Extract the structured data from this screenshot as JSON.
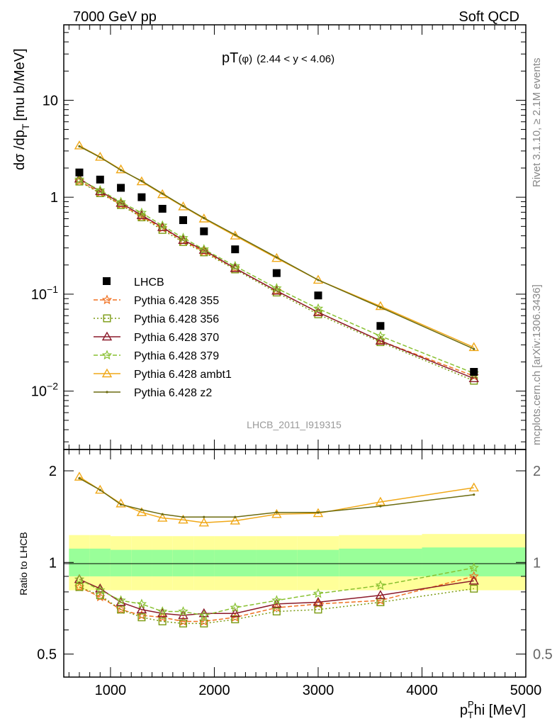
{
  "header": {
    "left": "7000 GeV pp",
    "right": "Soft QCD"
  },
  "side_labels": {
    "rivet": "Rivet 3.1.10, ≥ 2.1M events",
    "mcplots": "mcplots.cern.ch [arXiv:1306.3436]"
  },
  "analysis_label": "LHCB_2011_I919315",
  "chart_data": [
    {
      "type": "line",
      "title_main": "pT",
      "title_sub": "(φ)",
      "title_range": "(2.44 < y < 4.06)",
      "ylabel": "dσ /dp",
      "ylabel_sub": "T",
      "ylabel_unit": "[mu b/MeV]",
      "yscale": "log",
      "xlim": [
        550,
        5000
      ],
      "ylim": [
        0.0025,
        60
      ],
      "y_ticks": [
        {
          "value": 10,
          "label": "10"
        },
        {
          "value": 1,
          "label": "1"
        },
        {
          "value": 0.1,
          "base": "10",
          "exp": "−1"
        },
        {
          "value": 0.01,
          "base": "10",
          "exp": "−2"
        }
      ],
      "x": [
        700,
        900,
        1100,
        1300,
        1500,
        1700,
        1900,
        2200,
        2600,
        3000,
        3600,
        4500
      ],
      "data": {
        "name": "LHCB",
        "values": [
          1.8,
          1.52,
          1.25,
          1.0,
          0.76,
          0.58,
          0.445,
          0.29,
          0.165,
          0.097,
          0.047,
          0.0158
        ],
        "color": "#000000"
      },
      "series": [
        {
          "name": "Pythia 6.428 355",
          "color": "#f07020",
          "dash": "6,3",
          "marker": "star",
          "values": [
            1.47,
            1.12,
            0.84,
            0.63,
            0.48,
            0.355,
            0.275,
            0.185,
            0.108,
            0.065,
            0.033,
            0.0143
          ]
        },
        {
          "name": "Pythia 6.428 356",
          "color": "#7a9a10",
          "dash": "2,3",
          "marker": "square",
          "values": [
            1.45,
            1.1,
            0.83,
            0.62,
            0.46,
            0.345,
            0.27,
            0.18,
            0.104,
            0.062,
            0.032,
            0.0128
          ]
        },
        {
          "name": "Pythia 6.428 370",
          "color": "#8b1a2a",
          "dash": "",
          "marker": "triangle",
          "values": [
            1.55,
            1.15,
            0.87,
            0.65,
            0.49,
            0.36,
            0.285,
            0.185,
            0.108,
            0.065,
            0.033,
            0.0135
          ]
        },
        {
          "name": "Pythia 6.428 379",
          "color": "#88c030",
          "dash": "6,3",
          "marker": "star",
          "values": [
            1.52,
            1.18,
            0.89,
            0.69,
            0.51,
            0.38,
            0.29,
            0.195,
            0.115,
            0.071,
            0.037,
            0.0153
          ]
        },
        {
          "name": "Pythia 6.428 ambt1",
          "color": "#f0a818",
          "dash": "",
          "marker": "triangle",
          "values": [
            3.4,
            2.6,
            1.93,
            1.45,
            1.07,
            0.8,
            0.6,
            0.4,
            0.235,
            0.14,
            0.075,
            0.0283
          ]
        },
        {
          "name": "Pythia 6.428 z2",
          "color": "#6b6b10",
          "dash": "",
          "marker": "dot",
          "values": [
            3.35,
            2.58,
            1.9,
            1.47,
            1.09,
            0.81,
            0.61,
            0.41,
            0.24,
            0.14,
            0.073,
            0.0272
          ]
        }
      ],
      "legend_position": "middle-left"
    },
    {
      "type": "line",
      "ylabel": "Ratio to LHCB",
      "xlabel": "p",
      "xlabel_sub": "T",
      "xlabel_sup": "P",
      "xlabel_rest": "hi [MeV]",
      "xlim": [
        550,
        5000
      ],
      "ylim": [
        0.42,
        2.35
      ],
      "yscale": "log",
      "y_ticks": [
        {
          "value": 2,
          "label": "2"
        },
        {
          "value": 1,
          "label": "1"
        },
        {
          "value": 0.5,
          "label": "0.5"
        }
      ],
      "x_ticks": [
        {
          "value": 1000,
          "label": "1000"
        },
        {
          "value": 2000,
          "label": "2000"
        },
        {
          "value": 3000,
          "label": "3000"
        },
        {
          "value": 4000,
          "label": "4000"
        },
        {
          "value": 5000,
          "label": "5000"
        }
      ],
      "x": [
        700,
        900,
        1100,
        1300,
        1500,
        1700,
        1900,
        2200,
        2600,
        3000,
        3600,
        4500
      ],
      "bands": {
        "bins": [
          600,
          800,
          1000,
          1200,
          1400,
          1600,
          1800,
          2000,
          2400,
          2800,
          3200,
          4000,
          5000
        ],
        "yellow_lo": [
          0.81,
          0.81,
          0.81,
          0.81,
          0.81,
          0.81,
          0.81,
          0.81,
          0.81,
          0.81,
          0.81,
          0.81
        ],
        "yellow_hi": [
          1.23,
          1.23,
          1.22,
          1.22,
          1.22,
          1.22,
          1.22,
          1.22,
          1.22,
          1.22,
          1.23,
          1.24
        ],
        "green_lo": [
          0.9,
          0.9,
          0.9,
          0.9,
          0.9,
          0.9,
          0.9,
          0.9,
          0.9,
          0.9,
          0.9,
          0.9
        ],
        "green_hi": [
          1.11,
          1.11,
          1.1,
          1.1,
          1.1,
          1.1,
          1.1,
          1.1,
          1.1,
          1.1,
          1.11,
          1.12
        ]
      },
      "series": [
        {
          "name": "Pythia 6.428 355",
          "values": [
            0.83,
            0.77,
            0.7,
            0.67,
            0.66,
            0.64,
            0.64,
            0.66,
            0.71,
            0.73,
            0.75,
            0.9
          ]
        },
        {
          "name": "Pythia 6.428 356",
          "values": [
            0.83,
            0.78,
            0.7,
            0.66,
            0.64,
            0.63,
            0.63,
            0.65,
            0.69,
            0.7,
            0.74,
            0.82
          ]
        },
        {
          "name": "Pythia 6.428 370",
          "values": [
            0.88,
            0.82,
            0.74,
            0.7,
            0.68,
            0.67,
            0.68,
            0.68,
            0.73,
            0.74,
            0.78,
            0.87
          ]
        },
        {
          "name": "Pythia 6.428 379",
          "values": [
            0.88,
            0.81,
            0.75,
            0.73,
            0.69,
            0.69,
            0.67,
            0.71,
            0.75,
            0.79,
            0.84,
            0.96
          ]
        },
        {
          "name": "Pythia 6.428 ambt1",
          "values": [
            1.91,
            1.73,
            1.56,
            1.46,
            1.4,
            1.38,
            1.35,
            1.37,
            1.44,
            1.45,
            1.58,
            1.76
          ]
        },
        {
          "name": "Pythia 6.428 z2",
          "values": [
            1.89,
            1.73,
            1.55,
            1.49,
            1.44,
            1.41,
            1.41,
            1.41,
            1.46,
            1.46,
            1.53,
            1.67
          ]
        }
      ]
    }
  ]
}
